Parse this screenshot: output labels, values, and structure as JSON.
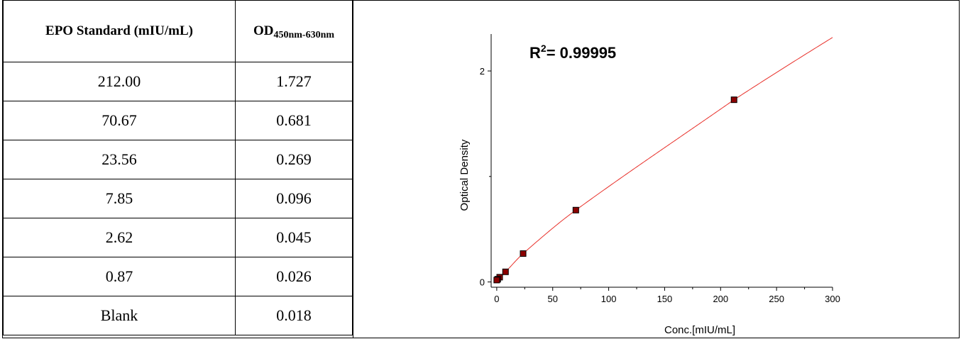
{
  "table": {
    "header": [
      "EPO Standard (mIU/mL)",
      "OD",
      "450nm-630nm"
    ],
    "rows": [
      [
        "212.00",
        "1.727"
      ],
      [
        "70.67",
        "0.681"
      ],
      [
        "23.56",
        "0.269"
      ],
      [
        "7.85",
        "0.096"
      ],
      [
        "2.62",
        "0.045"
      ],
      [
        "0.87",
        "0.026"
      ],
      [
        "Blank",
        "0.018"
      ]
    ]
  },
  "chart_data": {
    "type": "scatter",
    "xlabel": "Conc.[mIU/mL]",
    "ylabel": "Optical Density",
    "annotation": {
      "prefix": "R",
      "sup": "2",
      "text": "= 0.99995"
    },
    "xlim": [
      -5,
      300
    ],
    "ylim": [
      -0.05,
      2.35
    ],
    "xticks": [
      0,
      50,
      100,
      150,
      200,
      250,
      300
    ],
    "yticks_labeled": [
      0,
      2
    ],
    "yticks_minor": [
      1
    ],
    "points": [
      {
        "x": 212.0,
        "y": 1.727
      },
      {
        "x": 70.67,
        "y": 0.681
      },
      {
        "x": 23.56,
        "y": 0.269
      },
      {
        "x": 7.85,
        "y": 0.096
      },
      {
        "x": 2.62,
        "y": 0.045
      },
      {
        "x": 0.87,
        "y": 0.026
      },
      {
        "x": 0,
        "y": 0.018
      }
    ],
    "curve": {
      "color": "#e8302a",
      "x_range": [
        0,
        300
      ]
    },
    "marker_color": "#8b0000",
    "grid": false
  }
}
